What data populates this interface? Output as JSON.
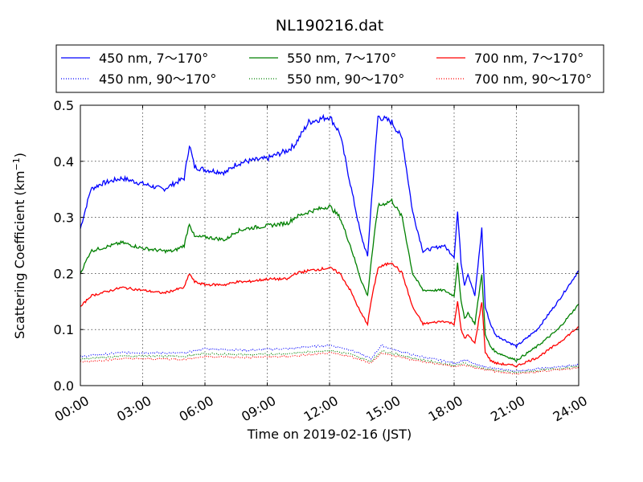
{
  "chart_data": {
    "type": "line",
    "title": "NL190216.dat",
    "xlabel": "Time on 2019-02-16 (JST)",
    "ylabel_main": "Scattering Coefficient (km",
    "ylabel_exp": "−1",
    "ylabel_close": ")",
    "xlim": [
      "2019-02-16 00:00",
      "2019-02-17 00:00"
    ],
    "ylim": [
      0,
      0.5
    ],
    "x_ticks": [
      "00:00",
      "03:00",
      "06:00",
      "09:00",
      "12:00",
      "15:00",
      "18:00",
      "21:00",
      "24:00"
    ],
    "y_ticks": [
      "0.0",
      "0.1",
      "0.2",
      "0.3",
      "0.4",
      "0.5"
    ],
    "grid": true,
    "legend_position": "top",
    "legend_columns": 3,
    "series": [
      {
        "name": "450 nm, 7～170°",
        "color": "#0000ff",
        "style": "solid",
        "x": [
          "00:00",
          "00:30",
          "01:00",
          "02:00",
          "03:00",
          "04:00",
          "04:30",
          "05:00",
          "05:15",
          "05:30",
          "06:00",
          "07:00",
          "07:30",
          "08:00",
          "09:00",
          "10:00",
          "10:20",
          "11:00",
          "12:00",
          "12:30",
          "13:00",
          "13:30",
          "13:50",
          "14:00",
          "14:20",
          "15:00",
          "15:30",
          "16:00",
          "16:30",
          "17:30",
          "18:00",
          "18:10",
          "18:20",
          "18:30",
          "18:40",
          "19:00",
          "19:20",
          "19:30",
          "19:45",
          "20:00",
          "21:00",
          "22:00",
          "23:00",
          "24:00"
        ],
        "y": [
          0.28,
          0.35,
          0.36,
          0.37,
          0.36,
          0.35,
          0.36,
          0.37,
          0.43,
          0.39,
          0.385,
          0.38,
          0.395,
          0.4,
          0.405,
          0.42,
          0.43,
          0.47,
          0.48,
          0.45,
          0.36,
          0.27,
          0.23,
          0.32,
          0.48,
          0.47,
          0.44,
          0.31,
          0.24,
          0.25,
          0.23,
          0.31,
          0.22,
          0.18,
          0.2,
          0.16,
          0.28,
          0.14,
          0.11,
          0.09,
          0.07,
          0.1,
          0.15,
          0.205
        ]
      },
      {
        "name": "450 nm, 90～170°",
        "color": "#0000ff",
        "style": "dotted",
        "x": [
          "00:00",
          "02:00",
          "05:00",
          "06:00",
          "08:00",
          "10:00",
          "12:00",
          "13:00",
          "14:00",
          "14:30",
          "15:00",
          "16:00",
          "18:00",
          "18:30",
          "19:00",
          "20:00",
          "21:00",
          "24:00"
        ],
        "y": [
          0.052,
          0.059,
          0.058,
          0.066,
          0.063,
          0.066,
          0.072,
          0.064,
          0.048,
          0.072,
          0.065,
          0.055,
          0.04,
          0.046,
          0.038,
          0.03,
          0.026,
          0.037
        ]
      },
      {
        "name": "550 nm, 7～170°",
        "color": "#008000",
        "style": "solid",
        "x": [
          "00:00",
          "00:30",
          "01:00",
          "02:00",
          "03:00",
          "04:00",
          "04:30",
          "05:00",
          "05:15",
          "05:30",
          "06:00",
          "07:00",
          "07:30",
          "08:00",
          "09:00",
          "10:00",
          "10:20",
          "11:00",
          "12:00",
          "12:30",
          "13:00",
          "13:30",
          "13:50",
          "14:00",
          "14:20",
          "15:00",
          "15:30",
          "16:00",
          "16:30",
          "17:30",
          "18:00",
          "18:10",
          "18:20",
          "18:30",
          "18:40",
          "19:00",
          "19:20",
          "19:30",
          "19:45",
          "20:00",
          "21:00",
          "22:00",
          "23:00",
          "24:00"
        ],
        "y": [
          0.2,
          0.24,
          0.245,
          0.255,
          0.245,
          0.24,
          0.24,
          0.25,
          0.29,
          0.265,
          0.265,
          0.26,
          0.275,
          0.28,
          0.285,
          0.29,
          0.3,
          0.31,
          0.32,
          0.3,
          0.25,
          0.19,
          0.16,
          0.22,
          0.32,
          0.33,
          0.3,
          0.2,
          0.17,
          0.17,
          0.16,
          0.22,
          0.15,
          0.12,
          0.13,
          0.11,
          0.2,
          0.09,
          0.07,
          0.06,
          0.045,
          0.07,
          0.1,
          0.145
        ]
      },
      {
        "name": "550 nm, 90～170°",
        "color": "#008000",
        "style": "dotted",
        "x": [
          "00:00",
          "02:00",
          "05:00",
          "06:00",
          "08:00",
          "10:00",
          "12:00",
          "13:00",
          "14:00",
          "14:30",
          "15:00",
          "16:00",
          "18:00",
          "18:30",
          "19:00",
          "20:00",
          "21:00",
          "24:00"
        ],
        "y": [
          0.047,
          0.053,
          0.052,
          0.057,
          0.055,
          0.057,
          0.063,
          0.056,
          0.043,
          0.062,
          0.058,
          0.049,
          0.036,
          0.04,
          0.034,
          0.027,
          0.023,
          0.034
        ]
      },
      {
        "name": "700 nm, 7～170°",
        "color": "#ff0000",
        "style": "solid",
        "x": [
          "00:00",
          "00:30",
          "01:00",
          "02:00",
          "03:00",
          "04:00",
          "04:30",
          "05:00",
          "05:15",
          "05:30",
          "06:00",
          "07:00",
          "07:30",
          "08:00",
          "09:00",
          "10:00",
          "10:20",
          "11:00",
          "12:00",
          "12:30",
          "13:00",
          "13:30",
          "13:50",
          "14:00",
          "14:20",
          "15:00",
          "15:30",
          "16:00",
          "16:30",
          "17:30",
          "18:00",
          "18:10",
          "18:20",
          "18:30",
          "18:40",
          "19:00",
          "19:20",
          "19:30",
          "19:45",
          "20:00",
          "21:00",
          "22:00",
          "23:00",
          "24:00"
        ],
        "y": [
          0.14,
          0.16,
          0.165,
          0.175,
          0.17,
          0.165,
          0.17,
          0.175,
          0.2,
          0.185,
          0.18,
          0.18,
          0.185,
          0.185,
          0.19,
          0.19,
          0.2,
          0.205,
          0.21,
          0.2,
          0.17,
          0.13,
          0.11,
          0.15,
          0.21,
          0.22,
          0.2,
          0.14,
          0.11,
          0.115,
          0.11,
          0.15,
          0.1,
          0.085,
          0.09,
          0.075,
          0.15,
          0.06,
          0.045,
          0.04,
          0.035,
          0.05,
          0.075,
          0.105
        ]
      },
      {
        "name": "700 nm, 90～170°",
        "color": "#ff0000",
        "style": "dotted",
        "x": [
          "00:00",
          "02:00",
          "05:00",
          "06:00",
          "08:00",
          "10:00",
          "12:00",
          "13:00",
          "14:00",
          "14:30",
          "15:00",
          "16:00",
          "18:00",
          "18:30",
          "19:00",
          "20:00",
          "21:00",
          "24:00"
        ],
        "y": [
          0.042,
          0.048,
          0.047,
          0.052,
          0.05,
          0.052,
          0.058,
          0.052,
          0.04,
          0.058,
          0.054,
          0.046,
          0.034,
          0.037,
          0.032,
          0.025,
          0.021,
          0.032
        ]
      }
    ]
  }
}
